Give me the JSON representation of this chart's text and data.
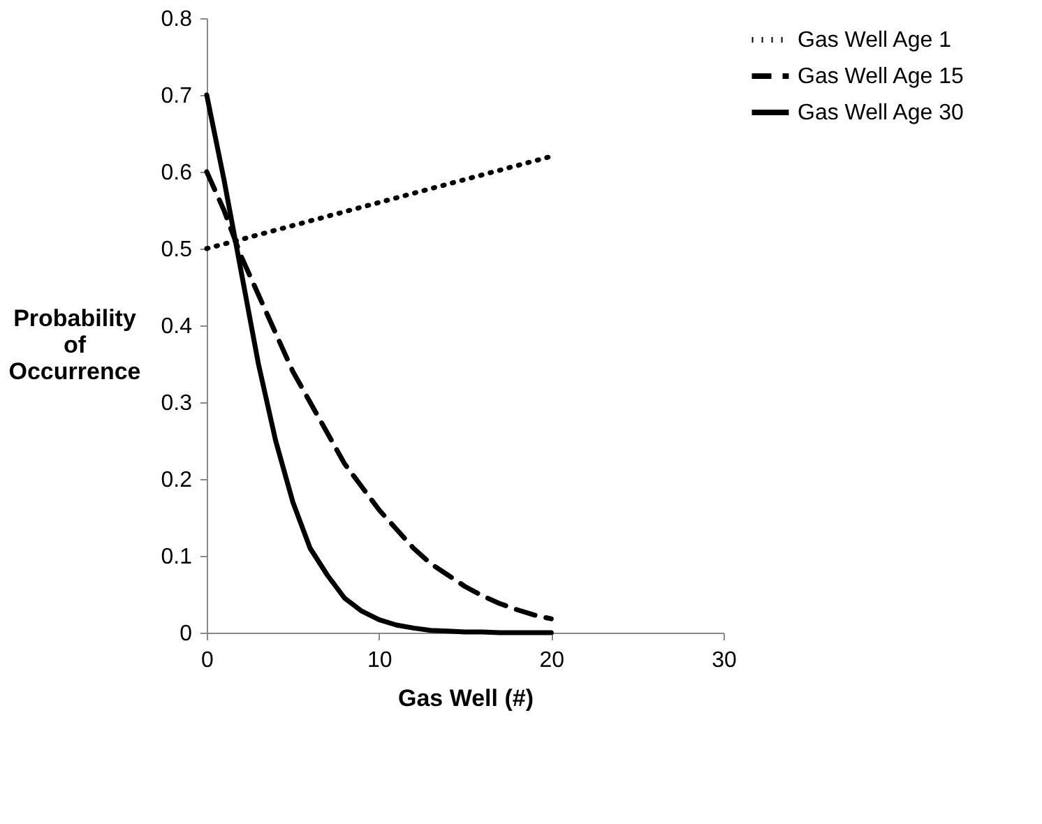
{
  "chart_data": {
    "type": "line",
    "xlabel": "Gas Well (#)",
    "ylabel": "Probability of Occurrence",
    "x": [
      0,
      1,
      2,
      3,
      4,
      5,
      6,
      7,
      8,
      9,
      10,
      11,
      12,
      13,
      14,
      15,
      16,
      17,
      18,
      19,
      20
    ],
    "series": [
      {
        "name": "Gas Well Age 1",
        "color": "#000000",
        "line_style": "dotted",
        "values": [
          0.5,
          0.506,
          0.512,
          0.518,
          0.524,
          0.53,
          0.536,
          0.542,
          0.548,
          0.554,
          0.56,
          0.566,
          0.572,
          0.578,
          0.584,
          0.59,
          0.596,
          0.602,
          0.608,
          0.614,
          0.62
        ]
      },
      {
        "name": "Gas Well Age 15",
        "color": "#000000",
        "line_style": "dashed",
        "values": [
          0.6,
          0.55,
          0.49,
          0.44,
          0.39,
          0.34,
          0.3,
          0.26,
          0.22,
          0.19,
          0.16,
          0.135,
          0.11,
          0.09,
          0.075,
          0.06,
          0.048,
          0.038,
          0.03,
          0.023,
          0.018
        ]
      },
      {
        "name": "Gas Well Age 30",
        "color": "#000000",
        "line_style": "solid",
        "values": [
          0.7,
          0.59,
          0.47,
          0.35,
          0.25,
          0.17,
          0.11,
          0.075,
          0.045,
          0.028,
          0.017,
          0.01,
          0.006,
          0.003,
          0.002,
          0.001,
          0.001,
          0,
          0,
          0,
          0
        ]
      }
    ],
    "xlim": [
      0,
      30
    ],
    "xticks": [
      0,
      10,
      20,
      30
    ],
    "ylim": [
      0,
      0.8
    ],
    "yticks": [
      0,
      0.1,
      0.2,
      0.3,
      0.4,
      0.5,
      0.6,
      0.7,
      0.8
    ],
    "grid": false,
    "legend": "right",
    "marker": "none"
  }
}
